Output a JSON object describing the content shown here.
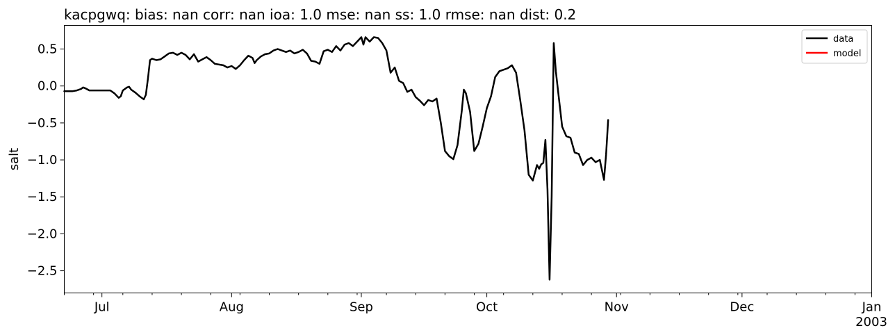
{
  "chart_data": {
    "type": "line",
    "title": "kacpgwq: bias: nan  corr: nan  ioa: 1.0  mse: nan  ss: 1.0  rmse: nan  dist: 0.2",
    "ylabel": "salt",
    "xlabel": "",
    "xlim": [
      "2002-06-22",
      "2003-01-01"
    ],
    "ylim": [
      -2.8,
      0.82
    ],
    "yticks": [
      0.5,
      0.0,
      -0.5,
      -1.0,
      -1.5,
      -2.0,
      -2.5
    ],
    "ytick_labels": [
      "0.5",
      "0.0",
      "−0.5",
      "−1.0",
      "−1.5",
      "−2.0",
      "−2.5"
    ],
    "xticks": [
      {
        "date": "2002-07-01",
        "label": "Jul"
      },
      {
        "date": "2002-08-01",
        "label": "Aug"
      },
      {
        "date": "2002-09-01",
        "label": "Sep"
      },
      {
        "date": "2002-10-01",
        "label": "Oct"
      },
      {
        "date": "2002-11-01",
        "label": "Nov"
      },
      {
        "date": "2002-12-01",
        "label": "Dec"
      },
      {
        "date": "2003-01-01",
        "label": "Jan"
      }
    ],
    "x_offset_label": "2003",
    "legend": {
      "location": "top-right",
      "entries": [
        {
          "label": "data",
          "color": "#000000"
        },
        {
          "label": "model",
          "color": "#ff0000"
        }
      ]
    },
    "grid": false,
    "series": [
      {
        "name": "data",
        "color": "#000000",
        "points": [
          [
            "2002-06-22",
            -0.07
          ],
          [
            "2002-06-23",
            -0.07
          ],
          [
            "2002-06-24",
            -0.07
          ],
          [
            "2002-06-25",
            -0.06
          ],
          [
            "2002-06-26",
            -0.04
          ],
          [
            "2002-06-26T12",
            -0.02
          ],
          [
            "2002-06-27",
            -0.03
          ],
          [
            "2002-06-28",
            -0.06
          ],
          [
            "2002-06-30",
            -0.06
          ],
          [
            "2002-07-02",
            -0.06
          ],
          [
            "2002-07-03",
            -0.06
          ],
          [
            "2002-07-04",
            -0.1
          ],
          [
            "2002-07-05",
            -0.16
          ],
          [
            "2002-07-05T12",
            -0.14
          ],
          [
            "2002-07-06",
            -0.06
          ],
          [
            "2002-07-07",
            -0.02
          ],
          [
            "2002-07-07T12",
            -0.01
          ],
          [
            "2002-07-08",
            -0.05
          ],
          [
            "2002-07-09",
            -0.09
          ],
          [
            "2002-07-10",
            -0.14
          ],
          [
            "2002-07-11",
            -0.18
          ],
          [
            "2002-07-11T12",
            -0.12
          ],
          [
            "2002-07-12",
            0.1
          ],
          [
            "2002-07-12T12",
            0.35
          ],
          [
            "2002-07-13",
            0.37
          ],
          [
            "2002-07-14",
            0.35
          ],
          [
            "2002-07-15",
            0.36
          ],
          [
            "2002-07-16",
            0.4
          ],
          [
            "2002-07-17",
            0.44
          ],
          [
            "2002-07-18",
            0.45
          ],
          [
            "2002-07-19",
            0.42
          ],
          [
            "2002-07-20",
            0.45
          ],
          [
            "2002-07-21",
            0.42
          ],
          [
            "2002-07-22",
            0.36
          ],
          [
            "2002-07-23",
            0.43
          ],
          [
            "2002-07-24",
            0.33
          ],
          [
            "2002-07-25",
            0.36
          ],
          [
            "2002-07-26",
            0.39
          ],
          [
            "2002-07-27",
            0.35
          ],
          [
            "2002-07-28",
            0.3
          ],
          [
            "2002-07-29",
            0.29
          ],
          [
            "2002-07-30",
            0.28
          ],
          [
            "2002-07-31",
            0.25
          ],
          [
            "2002-08-01",
            0.27
          ],
          [
            "2002-08-02",
            0.23
          ],
          [
            "2002-08-03",
            0.28
          ],
          [
            "2002-08-04",
            0.35
          ],
          [
            "2002-08-05",
            0.41
          ],
          [
            "2002-08-06",
            0.38
          ],
          [
            "2002-08-06T12",
            0.31
          ],
          [
            "2002-08-07",
            0.35
          ],
          [
            "2002-08-08",
            0.4
          ],
          [
            "2002-08-09",
            0.43
          ],
          [
            "2002-08-10",
            0.44
          ],
          [
            "2002-08-11",
            0.48
          ],
          [
            "2002-08-12",
            0.5
          ],
          [
            "2002-08-13",
            0.48
          ],
          [
            "2002-08-14",
            0.46
          ],
          [
            "2002-08-15",
            0.48
          ],
          [
            "2002-08-16",
            0.44
          ],
          [
            "2002-08-17",
            0.46
          ],
          [
            "2002-08-18",
            0.49
          ],
          [
            "2002-08-19",
            0.44
          ],
          [
            "2002-08-20",
            0.34
          ],
          [
            "2002-08-21",
            0.33
          ],
          [
            "2002-08-22",
            0.3
          ],
          [
            "2002-08-23",
            0.47
          ],
          [
            "2002-08-24",
            0.49
          ],
          [
            "2002-08-25",
            0.46
          ],
          [
            "2002-08-26",
            0.54
          ],
          [
            "2002-08-27",
            0.48
          ],
          [
            "2002-08-28",
            0.56
          ],
          [
            "2002-08-29",
            0.58
          ],
          [
            "2002-08-30",
            0.54
          ],
          [
            "2002-08-31",
            0.6
          ],
          [
            "2002-09-01",
            0.66
          ],
          [
            "2002-09-01T12",
            0.56
          ],
          [
            "2002-09-02",
            0.66
          ],
          [
            "2002-09-03",
            0.6
          ],
          [
            "2002-09-04",
            0.66
          ],
          [
            "2002-09-05",
            0.65
          ],
          [
            "2002-09-06",
            0.58
          ],
          [
            "2002-09-07",
            0.48
          ],
          [
            "2002-09-08",
            0.18
          ],
          [
            "2002-09-09",
            0.25
          ],
          [
            "2002-09-10",
            0.07
          ],
          [
            "2002-09-11",
            0.04
          ],
          [
            "2002-09-12",
            -0.08
          ],
          [
            "2002-09-13",
            -0.05
          ],
          [
            "2002-09-14",
            -0.15
          ],
          [
            "2002-09-15",
            -0.2
          ],
          [
            "2002-09-16",
            -0.26
          ],
          [
            "2002-09-17",
            -0.19
          ],
          [
            "2002-09-18",
            -0.21
          ],
          [
            "2002-09-19",
            -0.17
          ],
          [
            "2002-09-20",
            -0.5
          ],
          [
            "2002-09-21",
            -0.88
          ],
          [
            "2002-09-22",
            -0.95
          ],
          [
            "2002-09-23",
            -0.99
          ],
          [
            "2002-09-24",
            -0.8
          ],
          [
            "2002-09-25",
            -0.34
          ],
          [
            "2002-09-25T12",
            -0.05
          ],
          [
            "2002-09-26",
            -0.1
          ],
          [
            "2002-09-27",
            -0.35
          ],
          [
            "2002-09-28",
            -0.88
          ],
          [
            "2002-09-29",
            -0.78
          ],
          [
            "2002-09-30",
            -0.55
          ],
          [
            "2002-10-01",
            -0.3
          ],
          [
            "2002-10-02",
            -0.14
          ],
          [
            "2002-10-03",
            0.12
          ],
          [
            "2002-10-04",
            0.2
          ],
          [
            "2002-10-05",
            0.22
          ],
          [
            "2002-10-06",
            0.24
          ],
          [
            "2002-10-07",
            0.28
          ],
          [
            "2002-10-08",
            0.18
          ],
          [
            "2002-10-09",
            -0.2
          ],
          [
            "2002-10-10",
            -0.6
          ],
          [
            "2002-10-11",
            -1.2
          ],
          [
            "2002-10-12",
            -1.28
          ],
          [
            "2002-10-13",
            -1.07
          ],
          [
            "2002-10-13T12",
            -1.12
          ],
          [
            "2002-10-14",
            -1.06
          ],
          [
            "2002-10-14T12",
            -1.04
          ],
          [
            "2002-10-15",
            -0.73
          ],
          [
            "2002-10-15T12",
            -1.4
          ],
          [
            "2002-10-16",
            -2.62
          ],
          [
            "2002-10-16T12",
            -1.5
          ],
          [
            "2002-10-17",
            0.58
          ],
          [
            "2002-10-17T12",
            0.2
          ],
          [
            "2002-10-18",
            -0.05
          ],
          [
            "2002-10-19",
            -0.55
          ],
          [
            "2002-10-20",
            -0.68
          ],
          [
            "2002-10-21",
            -0.7
          ],
          [
            "2002-10-22",
            -0.9
          ],
          [
            "2002-10-23",
            -0.92
          ],
          [
            "2002-10-24",
            -1.07
          ],
          [
            "2002-10-25",
            -1.0
          ],
          [
            "2002-10-26",
            -0.97
          ],
          [
            "2002-10-27",
            -1.03
          ],
          [
            "2002-10-28",
            -1.0
          ],
          [
            "2002-10-29",
            -1.27
          ],
          [
            "2002-10-29T12",
            -0.93
          ],
          [
            "2002-10-30",
            -0.46
          ]
        ]
      },
      {
        "name": "model",
        "color": "#ff0000",
        "points": []
      }
    ]
  }
}
